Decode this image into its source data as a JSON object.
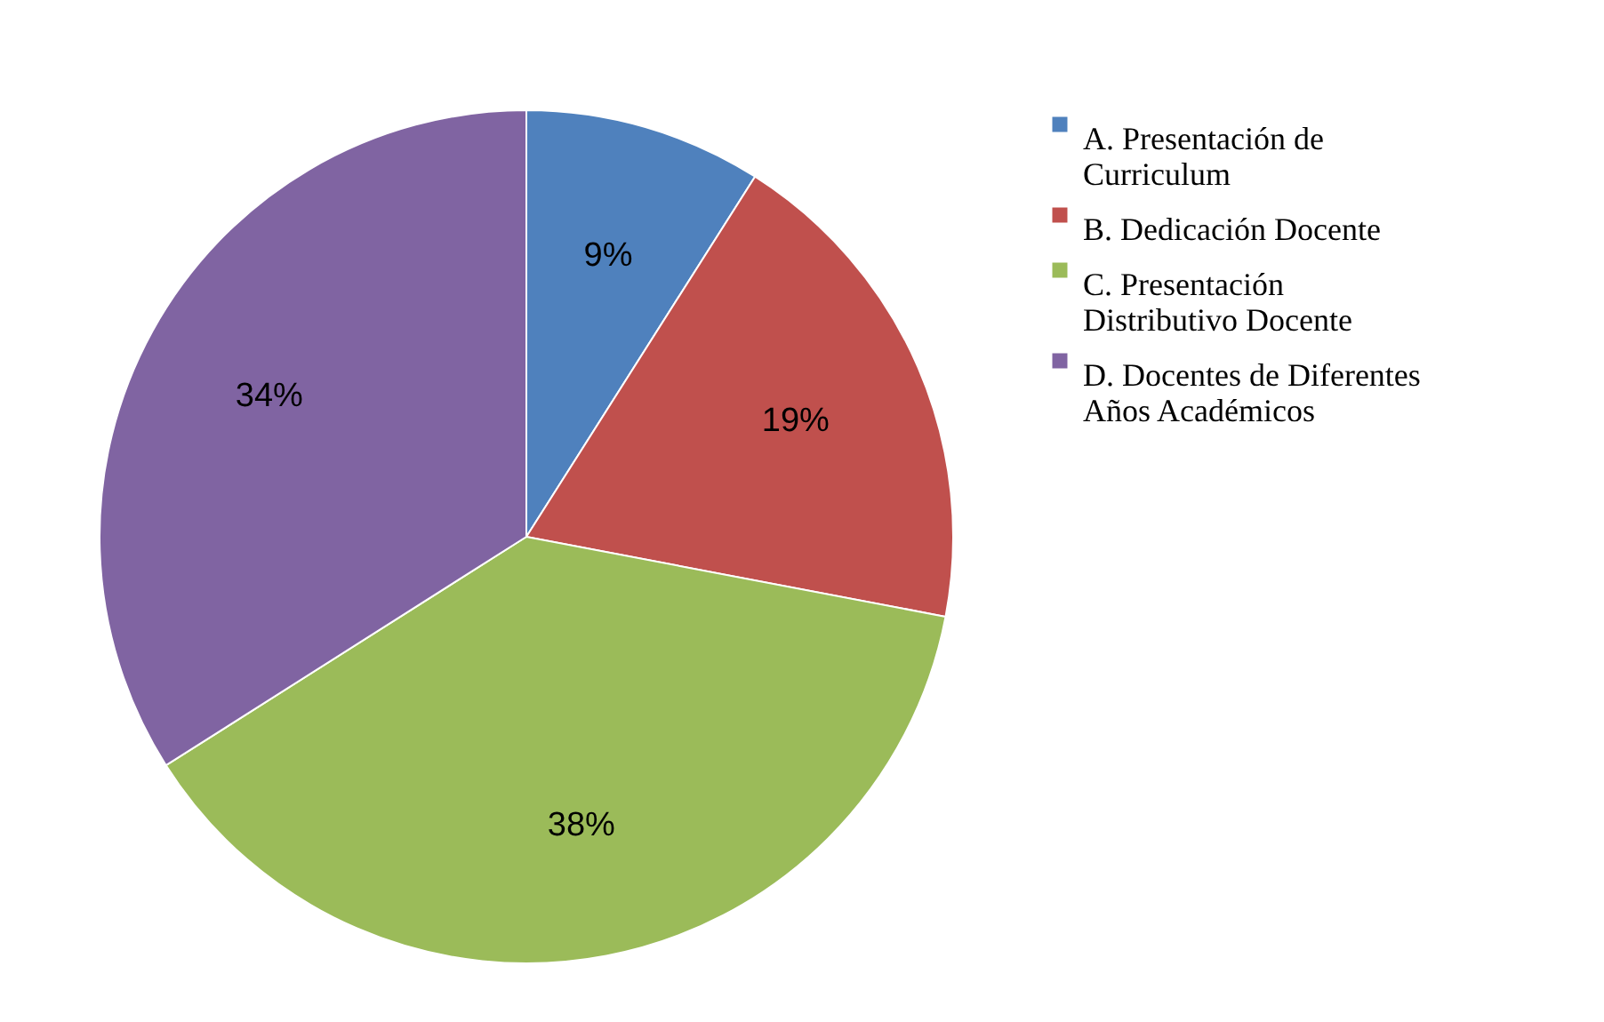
{
  "chart_data": {
    "type": "pie",
    "categories": [
      "A. Presentación de Curriculum",
      "B. Dedicación Docente",
      "C. Presentación Distributivo Docente",
      "D. Docentes de Diferentes Años Académicos"
    ],
    "values": [
      9,
      19,
      38,
      34
    ],
    "colors": [
      "#4f81bd",
      "#c0504d",
      "#9bbb59",
      "#8064a2"
    ],
    "value_labels": [
      "9%",
      "19%",
      "38%",
      "34%"
    ],
    "legend": "right"
  }
}
